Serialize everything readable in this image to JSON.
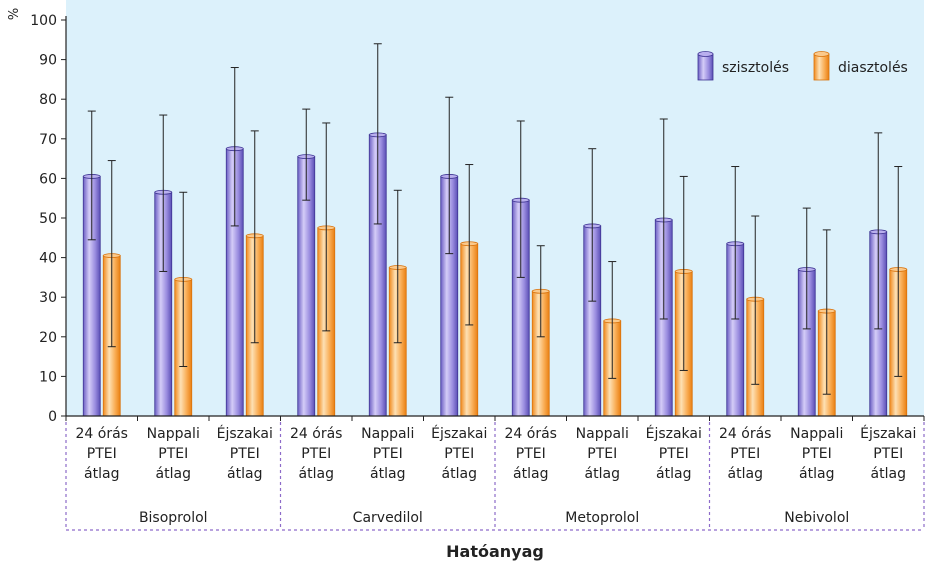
{
  "chart_data": {
    "type": "bar",
    "title": "",
    "ylabel": "%",
    "xlabel": "Hatóanyag",
    "ylim": [
      0,
      100
    ],
    "yticks": [
      0,
      10,
      20,
      30,
      40,
      50,
      60,
      70,
      80,
      90,
      100
    ],
    "grid": false,
    "legend_position": "top-right",
    "colors": {
      "plot_bg": "#dcf1fb",
      "szisztoles": "#9b8fe0",
      "diasztoles": "#f7a64a",
      "divider": "#8d6bc9"
    },
    "categories": [
      "24 órás PTEI átlag",
      "Nappali PTEI átlag",
      "Éjszakai PTEI átlag",
      "24 órás PTEI átlag",
      "Nappali PTEI átlag",
      "Éjszakai PTEI átlag",
      "24 órás PTEI átlag",
      "Nappali PTEI átlag",
      "Éjszakai PTEI átlag",
      "24 órás PTEI átlag",
      "Nappali PTEI átlag",
      "Éjszakai PTEI átlag"
    ],
    "category_lines": [
      [
        "24 órás",
        "PTEI",
        "átlag"
      ],
      [
        "Nappali",
        "PTEI",
        "átlag"
      ],
      [
        "Éjszakai",
        "PTEI",
        "átlag"
      ],
      [
        "24 órás",
        "PTEI",
        "átlag"
      ],
      [
        "Nappali",
        "PTEI",
        "átlag"
      ],
      [
        "Éjszakai",
        "PTEI",
        "átlag"
      ],
      [
        "24 órás",
        "PTEI",
        "átlag"
      ],
      [
        "Nappali",
        "PTEI",
        "átlag"
      ],
      [
        "Éjszakai",
        "PTEI",
        "átlag"
      ],
      [
        "24 órás",
        "PTEI",
        "átlag"
      ],
      [
        "Nappali",
        "PTEI",
        "átlag"
      ],
      [
        "Éjszakai",
        "PTEI",
        "átlag"
      ]
    ],
    "groups": [
      "Bisoprolol",
      "Carvedilol",
      "Metoprolol",
      "Nebivolol"
    ],
    "series": [
      {
        "name": "szisztolés",
        "values": [
          60.5,
          56.5,
          67.5,
          65.5,
          71,
          60.5,
          54.5,
          48,
          49.5,
          43.5,
          37,
          46.5
        ],
        "err_low": [
          44.5,
          36.5,
          48,
          54.5,
          48.5,
          41,
          35,
          29,
          24.5,
          24.5,
          22,
          22
        ],
        "err_high": [
          77,
          76,
          88,
          77.5,
          94,
          80.5,
          74.5,
          67.5,
          75,
          63,
          52.5,
          71.5
        ]
      },
      {
        "name": "diasztolés",
        "values": [
          40.5,
          34.5,
          45.5,
          47.5,
          37.5,
          43.5,
          31.5,
          24,
          36.5,
          29.5,
          26.5,
          37
        ],
        "err_low": [
          17.5,
          12.5,
          18.5,
          21.5,
          18.5,
          23,
          20,
          9.5,
          11.5,
          8,
          5.5,
          10
        ],
        "err_high": [
          64.5,
          56.5,
          72,
          74,
          57,
          63.5,
          43,
          39,
          60.5,
          50.5,
          47,
          63
        ]
      }
    ]
  }
}
